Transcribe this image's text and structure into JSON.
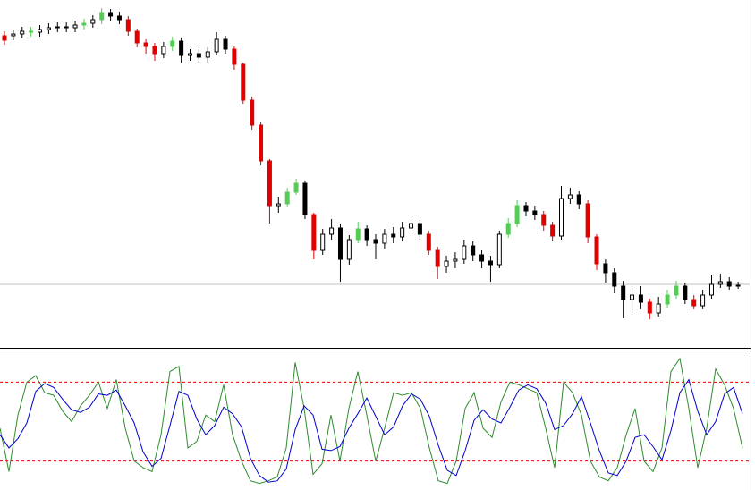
{
  "chart_data": [
    {
      "type": "candlestick",
      "open": [
        345,
        350,
        352,
        355,
        354,
        357,
        359,
        360,
        359,
        362,
        364,
        368,
        376,
        372,
        368,
        355,
        342,
        338,
        330,
        338,
        344,
        328,
        330,
        326,
        332,
        346,
        335,
        318,
        278,
        250,
        210,
        160,
        162,
        175,
        185,
        150,
        110,
        128,
        135,
        100,
        122,
        134,
        122,
        118,
        128,
        125,
        135,
        140,
        128,
        110,
        92,
        98,
        100,
        115,
        105,
        98,
        94,
        128,
        140,
        160,
        154,
        150,
        138,
        126,
        168,
        172,
        162,
        125,
        95,
        85,
        70,
        55,
        60,
        52,
        40,
        50,
        60,
        70,
        55,
        48,
        60,
        72,
        75,
        70
      ],
      "high": [
        355,
        357,
        360,
        360,
        362,
        364,
        365,
        365,
        367,
        369,
        373,
        381,
        380,
        377,
        372,
        358,
        346,
        342,
        343,
        349,
        348,
        335,
        335,
        337,
        354,
        350,
        338,
        320,
        282,
        254,
        212,
        170,
        180,
        190,
        188,
        152,
        134,
        145,
        140,
        127,
        142,
        138,
        128,
        134,
        136,
        142,
        148,
        144,
        132,
        114,
        104,
        108,
        122,
        120,
        110,
        104,
        132,
        146,
        166,
        164,
        160,
        154,
        142,
        182,
        180,
        176,
        166,
        128,
        100,
        90,
        76,
        68,
        70,
        56,
        58,
        66,
        76,
        74,
        60,
        66,
        82,
        84,
        80,
        75
      ],
      "low": [
        340,
        345,
        347,
        349,
        349,
        352,
        354,
        354,
        354,
        357,
        359,
        363,
        367,
        363,
        350,
        337,
        330,
        322,
        325,
        333,
        320,
        322,
        320,
        320,
        328,
        330,
        312,
        274,
        245,
        205,
        140,
        152,
        158,
        172,
        145,
        100,
        105,
        122,
        75,
        94,
        118,
        115,
        100,
        112,
        118,
        120,
        130,
        122,
        105,
        78,
        85,
        90,
        95,
        98,
        90,
        75,
        90,
        124,
        136,
        148,
        144,
        132,
        120,
        122,
        162,
        156,
        118,
        88,
        74,
        62,
        34,
        40,
        44,
        33,
        36,
        46,
        56,
        50,
        44,
        44,
        56,
        68,
        66,
        67
      ],
      "close": [
        350,
        352,
        355,
        354,
        357,
        359,
        360,
        359,
        362,
        364,
        368,
        376,
        372,
        368,
        355,
        342,
        338,
        330,
        338,
        344,
        328,
        330,
        326,
        332,
        346,
        335,
        318,
        278,
        250,
        210,
        160,
        162,
        175,
        185,
        150,
        110,
        128,
        135,
        100,
        122,
        134,
        122,
        118,
        128,
        125,
        135,
        140,
        128,
        110,
        92,
        98,
        100,
        115,
        105,
        98,
        94,
        128,
        140,
        160,
        154,
        150,
        138,
        126,
        168,
        172,
        162,
        125,
        95,
        85,
        70,
        55,
        60,
        52,
        40,
        50,
        60,
        70,
        55,
        48,
        60,
        72,
        75,
        70,
        71
      ],
      "colors": [
        "#e00000",
        "#000000",
        "#000000",
        "#55cc55",
        "#000000",
        "#000000",
        "#000000",
        "#000000",
        "#000000",
        "#55cc55",
        "#000000",
        "#55cc55",
        "#000000",
        "#000000",
        "#e00000",
        "#e00000",
        "#e00000",
        "#e00000",
        "#000000",
        "#55cc55",
        "#000000",
        "#000000",
        "#000000",
        "#000000",
        "#000000",
        "#000000",
        "#e00000",
        "#e00000",
        "#e00000",
        "#e00000",
        "#e00000",
        "#000000",
        "#55cc55",
        "#55cc55",
        "#000000",
        "#e00000",
        "#000000",
        "#000000",
        "#000000",
        "#000000",
        "#55cc55",
        "#000000",
        "#000000",
        "#000000",
        "#000000",
        "#000000",
        "#000000",
        "#000000",
        "#e00000",
        "#e00000",
        "#000000",
        "#000000",
        "#000000",
        "#000000",
        "#000000",
        "#000000",
        "#000000",
        "#55cc55",
        "#55cc55",
        "#000000",
        "#000000",
        "#e00000",
        "#e00000",
        "#000000",
        "#000000",
        "#000000",
        "#e00000",
        "#e00000",
        "#000000",
        "#000000",
        "#000000",
        "#000000",
        "#000000",
        "#e00000",
        "#000000",
        "#55cc55",
        "#55cc55",
        "#000000",
        "#e00000",
        "#000000",
        "#000000",
        "#000000",
        "#000000",
        "#000000"
      ],
      "ylim": [
        0,
        390
      ],
      "hline": 72,
      "hline_color": "#c0c0c0"
    },
    {
      "type": "line",
      "series": [
        {
          "color": "#2e8b2e",
          "values": [
            45,
            12,
            55,
            80,
            85,
            72,
            70,
            58,
            50,
            62,
            70,
            80,
            60,
            82,
            45,
            20,
            15,
            12,
            40,
            88,
            92,
            30,
            35,
            55,
            50,
            78,
            40,
            20,
            5,
            3,
            5,
            8,
            30,
            95,
            60,
            10,
            18,
            55,
            20,
            60,
            88,
            55,
            20,
            45,
            72,
            70,
            72,
            60,
            30,
            5,
            3,
            20,
            60,
            72,
            45,
            38,
            65,
            80,
            78,
            75,
            72,
            45,
            15,
            80,
            72,
            55,
            20,
            8,
            5,
            15,
            40,
            60,
            20,
            12,
            30,
            88,
            98,
            60,
            15,
            45,
            90,
            78,
            60,
            30
          ]
        },
        {
          "color": "#0000cc",
          "values": [
            40,
            30,
            37,
            49,
            73,
            79,
            76,
            67,
            59,
            57,
            61,
            71,
            70,
            74,
            62,
            49,
            27,
            16,
            22,
            47,
            73,
            70,
            52,
            40,
            47,
            61,
            56,
            46,
            22,
            9,
            4,
            5,
            14,
            44,
            62,
            55,
            29,
            28,
            31,
            45,
            56,
            68,
            54,
            40,
            46,
            62,
            71,
            67,
            54,
            32,
            13,
            9,
            28,
            51,
            59,
            52,
            49,
            61,
            74,
            78,
            75,
            64,
            44,
            47,
            56,
            69,
            49,
            28,
            11,
            9,
            20,
            38,
            40,
            31,
            21,
            43,
            72,
            82,
            58,
            40,
            50,
            71,
            76,
            56
          ]
        }
      ],
      "ylim": [
        -2,
        100
      ],
      "levels": [
        80,
        20
      ],
      "level_color": "#e00000"
    }
  ]
}
